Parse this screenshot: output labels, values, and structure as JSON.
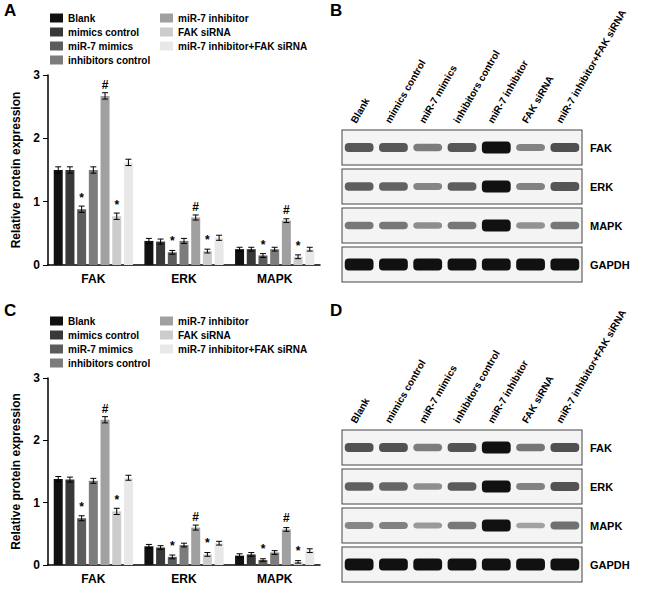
{
  "panel_labels": [
    "A",
    "B",
    "C",
    "D"
  ],
  "chart_data": [
    {
      "type": "bar",
      "categories": [
        "FAK",
        "ERK",
        "MAPK"
      ],
      "ylabel": "Relative protein expression",
      "ylim": [
        0,
        3
      ],
      "yticks": [
        0,
        1,
        2,
        3
      ],
      "legend": "upper left",
      "series": [
        {
          "name": "Blank",
          "color": "#111111",
          "values": [
            1.5,
            0.38,
            0.25
          ],
          "errors": [
            0.05,
            0.04,
            0.03
          ],
          "annotations": [
            null,
            null,
            null
          ]
        },
        {
          "name": "mimics control",
          "color": "#383838",
          "values": [
            1.5,
            0.37,
            0.25
          ],
          "errors": [
            0.05,
            0.04,
            0.03
          ],
          "annotations": [
            null,
            null,
            null
          ]
        },
        {
          "name": "miR-7 mimics",
          "color": "#5c5c5c",
          "values": [
            0.88,
            0.2,
            0.15
          ],
          "errors": [
            0.05,
            0.03,
            0.03
          ],
          "annotations": [
            "*",
            "*",
            "*"
          ]
        },
        {
          "name": "inhibitors control",
          "color": "#7c7c7c",
          "values": [
            1.5,
            0.38,
            0.25
          ],
          "errors": [
            0.05,
            0.04,
            0.03
          ],
          "annotations": [
            null,
            null,
            null
          ]
        },
        {
          "name": "miR-7 inhibitor",
          "color": "#a0a0a0",
          "values": [
            2.67,
            0.75,
            0.7
          ],
          "errors": [
            0.05,
            0.04,
            0.03
          ],
          "annotations": [
            "#",
            "#",
            "#"
          ]
        },
        {
          "name": "FAK siRNA",
          "color": "#cccccc",
          "values": [
            0.77,
            0.22,
            0.13
          ],
          "errors": [
            0.05,
            0.03,
            0.03
          ],
          "annotations": [
            "*",
            "*",
            "*"
          ]
        },
        {
          "name": "miR-7 inhibitor+FAK siRNA",
          "color": "#e8e8e8",
          "values": [
            1.62,
            0.43,
            0.25
          ],
          "errors": [
            0.05,
            0.04,
            0.03
          ],
          "annotations": [
            null,
            null,
            null
          ]
        }
      ]
    },
    {
      "type": "bar",
      "categories": [
        "FAK",
        "ERK",
        "MAPK"
      ],
      "ylabel": "Relative protein expression",
      "ylim": [
        0,
        3
      ],
      "yticks": [
        0,
        1,
        2,
        3
      ],
      "legend": "upper left",
      "series": [
        {
          "name": "Blank",
          "color": "#111111",
          "values": [
            1.38,
            0.3,
            0.15
          ],
          "errors": [
            0.04,
            0.03,
            0.03
          ],
          "annotations": [
            null,
            null,
            null
          ]
        },
        {
          "name": "mimics control",
          "color": "#383838",
          "values": [
            1.37,
            0.28,
            0.17
          ],
          "errors": [
            0.04,
            0.03,
            0.03
          ],
          "annotations": [
            null,
            null,
            null
          ]
        },
        {
          "name": "miR-7 mimics",
          "color": "#5c5c5c",
          "values": [
            0.75,
            0.13,
            0.08
          ],
          "errors": [
            0.04,
            0.03,
            0.02
          ],
          "annotations": [
            "*",
            "*",
            "*"
          ]
        },
        {
          "name": "inhibitors control",
          "color": "#7c7c7c",
          "values": [
            1.35,
            0.32,
            0.2
          ],
          "errors": [
            0.04,
            0.03,
            0.03
          ],
          "annotations": [
            null,
            null,
            null
          ]
        },
        {
          "name": "miR-7 inhibitor",
          "color": "#a0a0a0",
          "values": [
            2.33,
            0.6,
            0.57
          ],
          "errors": [
            0.05,
            0.04,
            0.03
          ],
          "annotations": [
            "#",
            "#",
            "#"
          ]
        },
        {
          "name": "FAK siRNA",
          "color": "#cccccc",
          "values": [
            0.86,
            0.17,
            0.05
          ],
          "errors": [
            0.05,
            0.03,
            0.02
          ],
          "annotations": [
            "*",
            "*",
            "*"
          ]
        },
        {
          "name": "miR-7 inhibitor+FAK siRNA",
          "color": "#e8e8e8",
          "values": [
            1.4,
            0.35,
            0.23
          ],
          "errors": [
            0.04,
            0.03,
            0.03
          ],
          "annotations": [
            null,
            null,
            null
          ]
        }
      ]
    }
  ],
  "blots": [
    {
      "lanes": [
        "Blank",
        "mimics control",
        "miR-7 mimics",
        "inhibitors control",
        "miR-7 inhibitor",
        "FAK siRNA",
        "miR-7 inhibitor+FAK siRNA"
      ],
      "proteins": [
        "FAK",
        "ERK",
        "MAPK",
        "GAPDH"
      ]
    },
    {
      "lanes": [
        "Blank",
        "mimics control",
        "miR-7 mimics",
        "inhibitors control",
        "miR-7 inhibitor",
        "FAK siRNA",
        "miR-7 inhibitor+FAK siRNA"
      ],
      "proteins": [
        "FAK",
        "ERK",
        "MAPK",
        "GAPDH"
      ]
    }
  ]
}
